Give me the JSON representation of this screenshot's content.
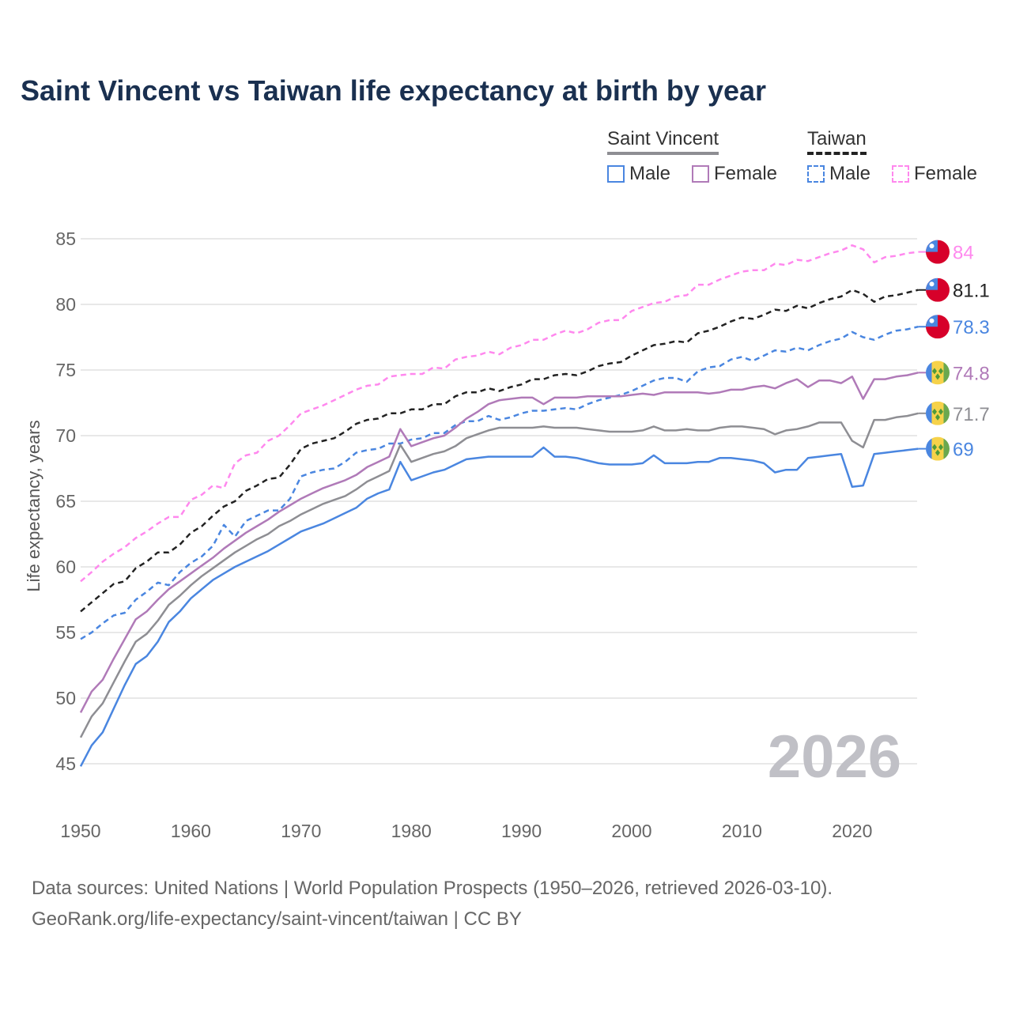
{
  "chart_data": {
    "type": "line",
    "title": "Saint Vincent vs Taiwan life expectancy at birth by year",
    "xlabel": "",
    "ylabel": "Life expectancy, years",
    "xlim": [
      1950,
      2026
    ],
    "ylim": [
      43,
      87
    ],
    "x_start": 1950,
    "x_ticks": [
      1950,
      1960,
      1970,
      1980,
      1990,
      2000,
      2010,
      2020
    ],
    "y_ticks": [
      45,
      50,
      55,
      60,
      65,
      70,
      75,
      80,
      85
    ],
    "grid": true,
    "watermark_year": "2026",
    "legend": {
      "placement": "top-right",
      "groups": [
        {
          "name": "Saint Vincent",
          "items": [
            "Male",
            "Female"
          ]
        },
        {
          "name": "Taiwan",
          "items": [
            "Male",
            "Female"
          ]
        }
      ]
    },
    "series": [
      {
        "name": "Taiwan Female",
        "country": "Taiwan",
        "color": "#ff88ee",
        "dashed": true,
        "end_label": "84",
        "values": [
          58.9,
          59.6,
          60.4,
          61.0,
          61.5,
          62.2,
          62.7,
          63.3,
          63.8,
          63.8,
          65.1,
          65.5,
          66.2,
          66.0,
          67.9,
          68.5,
          68.7,
          69.6,
          70.0,
          70.8,
          71.7,
          72.0,
          72.3,
          72.7,
          73.1,
          73.5,
          73.8,
          73.9,
          74.5,
          74.6,
          74.7,
          74.7,
          75.2,
          75.1,
          75.8,
          76.0,
          76.1,
          76.4,
          76.2,
          76.7,
          76.9,
          77.3,
          77.3,
          77.7,
          78.0,
          77.8,
          78.1,
          78.6,
          78.8,
          78.8,
          79.5,
          79.8,
          80.1,
          80.2,
          80.6,
          80.7,
          81.5,
          81.5,
          81.9,
          82.2,
          82.5,
          82.6,
          82.6,
          83.1,
          83.0,
          83.4,
          83.3,
          83.6,
          83.9,
          84.1,
          84.5,
          84.2,
          83.2,
          83.6,
          83.7,
          83.9,
          84.0
        ]
      },
      {
        "name": "Taiwan",
        "country": "Taiwan",
        "color": "#222222",
        "dashed": true,
        "end_label": "81.1",
        "values": [
          56.6,
          57.3,
          58.0,
          58.7,
          58.9,
          59.9,
          60.4,
          61.1,
          61.1,
          61.7,
          62.6,
          63.1,
          63.9,
          64.6,
          65.0,
          65.8,
          66.2,
          66.7,
          66.8,
          67.8,
          69.0,
          69.4,
          69.6,
          69.8,
          70.3,
          70.9,
          71.2,
          71.3,
          71.7,
          71.7,
          72.0,
          72.0,
          72.4,
          72.4,
          73.0,
          73.3,
          73.3,
          73.6,
          73.4,
          73.7,
          73.9,
          74.3,
          74.3,
          74.6,
          74.7,
          74.6,
          74.9,
          75.3,
          75.5,
          75.6,
          76.1,
          76.5,
          76.9,
          77.0,
          77.2,
          77.1,
          77.8,
          78.0,
          78.3,
          78.7,
          79.0,
          78.9,
          79.2,
          79.6,
          79.5,
          79.9,
          79.7,
          80.1,
          80.4,
          80.6,
          81.1,
          80.8,
          80.2,
          80.6,
          80.7,
          80.9,
          81.1
        ]
      },
      {
        "name": "Taiwan Male",
        "country": "Taiwan",
        "color": "#4a86e0",
        "dashed": true,
        "end_label": "78.3",
        "values": [
          54.5,
          55.0,
          55.7,
          56.3,
          56.5,
          57.5,
          58.1,
          58.8,
          58.6,
          59.6,
          60.3,
          60.8,
          61.6,
          63.2,
          62.3,
          63.5,
          63.9,
          64.3,
          64.3,
          65.2,
          66.9,
          67.2,
          67.4,
          67.5,
          68.0,
          68.7,
          68.9,
          69.0,
          69.4,
          69.4,
          69.7,
          69.8,
          70.2,
          70.2,
          70.8,
          71.1,
          71.1,
          71.5,
          71.2,
          71.4,
          71.7,
          71.9,
          71.9,
          72.0,
          72.1,
          72.0,
          72.4,
          72.7,
          72.9,
          73.1,
          73.4,
          73.8,
          74.2,
          74.4,
          74.4,
          74.1,
          74.9,
          75.2,
          75.3,
          75.8,
          76.0,
          75.7,
          76.1,
          76.5,
          76.4,
          76.7,
          76.5,
          76.9,
          77.2,
          77.4,
          77.9,
          77.5,
          77.3,
          77.7,
          78.0,
          78.1,
          78.3
        ]
      },
      {
        "name": "Saint Vincent Female",
        "country": "Saint Vincent",
        "color": "#b07ab8",
        "dashed": false,
        "end_label": "74.8",
        "values": [
          48.9,
          50.5,
          51.4,
          53.0,
          54.5,
          56.0,
          56.6,
          57.5,
          58.3,
          58.9,
          59.5,
          60.1,
          60.7,
          61.4,
          62.0,
          62.6,
          63.1,
          63.6,
          64.2,
          64.7,
          65.2,
          65.6,
          66.0,
          66.3,
          66.6,
          67.0,
          67.6,
          68.0,
          68.4,
          70.5,
          69.2,
          69.5,
          69.8,
          70.0,
          70.6,
          71.3,
          71.8,
          72.4,
          72.7,
          72.8,
          72.9,
          72.9,
          72.4,
          72.9,
          72.9,
          72.9,
          73.0,
          73.0,
          73.0,
          73.0,
          73.1,
          73.2,
          73.1,
          73.3,
          73.3,
          73.3,
          73.3,
          73.2,
          73.3,
          73.5,
          73.5,
          73.7,
          73.8,
          73.6,
          74.0,
          74.3,
          73.7,
          74.2,
          74.2,
          74.0,
          74.5,
          72.8,
          74.3,
          74.3,
          74.5,
          74.6,
          74.8
        ]
      },
      {
        "name": "Saint Vincent",
        "country": "Saint Vincent",
        "color": "#8e8e93",
        "dashed": false,
        "end_label": "71.7",
        "values": [
          47.0,
          48.6,
          49.6,
          51.2,
          52.8,
          54.3,
          54.9,
          55.9,
          57.1,
          57.8,
          58.6,
          59.3,
          59.9,
          60.5,
          61.1,
          61.6,
          62.1,
          62.5,
          63.1,
          63.5,
          64.0,
          64.4,
          64.8,
          65.1,
          65.4,
          65.9,
          66.5,
          66.9,
          67.3,
          69.3,
          68.0,
          68.3,
          68.6,
          68.8,
          69.2,
          69.8,
          70.1,
          70.4,
          70.6,
          70.6,
          70.6,
          70.6,
          70.7,
          70.6,
          70.6,
          70.6,
          70.5,
          70.4,
          70.3,
          70.3,
          70.3,
          70.4,
          70.7,
          70.4,
          70.4,
          70.5,
          70.4,
          70.4,
          70.6,
          70.7,
          70.7,
          70.6,
          70.5,
          70.1,
          70.4,
          70.5,
          70.7,
          71.0,
          71.0,
          71.0,
          69.6,
          69.1,
          71.2,
          71.2,
          71.4,
          71.5,
          71.7
        ]
      },
      {
        "name": "Saint Vincent Male",
        "country": "Saint Vincent",
        "color": "#4a86e0",
        "dashed": false,
        "end_label": "69",
        "values": [
          44.8,
          46.4,
          47.4,
          49.2,
          51.0,
          52.6,
          53.2,
          54.3,
          55.8,
          56.6,
          57.6,
          58.3,
          59.0,
          59.5,
          60.0,
          60.4,
          60.8,
          61.2,
          61.7,
          62.2,
          62.7,
          63.0,
          63.3,
          63.7,
          64.1,
          64.5,
          65.2,
          65.6,
          65.9,
          68.0,
          66.6,
          66.9,
          67.2,
          67.4,
          67.8,
          68.2,
          68.3,
          68.4,
          68.4,
          68.4,
          68.4,
          68.4,
          69.1,
          68.4,
          68.4,
          68.3,
          68.1,
          67.9,
          67.8,
          67.8,
          67.8,
          67.9,
          68.5,
          67.9,
          67.9,
          67.9,
          68.0,
          68.0,
          68.3,
          68.3,
          68.2,
          68.1,
          67.9,
          67.2,
          67.4,
          67.4,
          68.3,
          68.4,
          68.5,
          68.6,
          66.1,
          66.2,
          68.6,
          68.7,
          68.8,
          68.9,
          69.0
        ]
      }
    ]
  },
  "footer": {
    "line1": "Data sources: United Nations | World Population Prospects (1950–2026, retrieved 2026-03-10).",
    "line2": "GeoRank.org/life-expectancy/saint-vincent/taiwan | CC BY"
  }
}
